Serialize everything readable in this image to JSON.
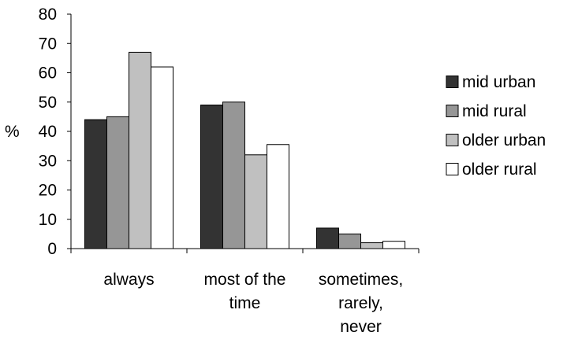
{
  "chart_data": {
    "type": "bar",
    "ylabel": "%",
    "ylim": [
      0,
      80
    ],
    "yticks": [
      0,
      10,
      20,
      30,
      40,
      50,
      60,
      70,
      80
    ],
    "grid": false,
    "legend_position": "right",
    "categories": [
      [
        "always"
      ],
      [
        "most of the",
        "time"
      ],
      [
        "sometimes,",
        "rarely,",
        "never"
      ]
    ],
    "series": [
      {
        "name": "mid urban",
        "color": "#333333",
        "values": [
          44,
          49,
          7
        ]
      },
      {
        "name": "mid rural",
        "color": "#969696",
        "values": [
          45,
          50,
          5
        ]
      },
      {
        "name": "older urban",
        "color": "#c0c0c0",
        "values": [
          67,
          32,
          2
        ]
      },
      {
        "name": "older rural",
        "color": "#ffffff",
        "values": [
          62,
          35.5,
          2.5
        ]
      }
    ]
  }
}
